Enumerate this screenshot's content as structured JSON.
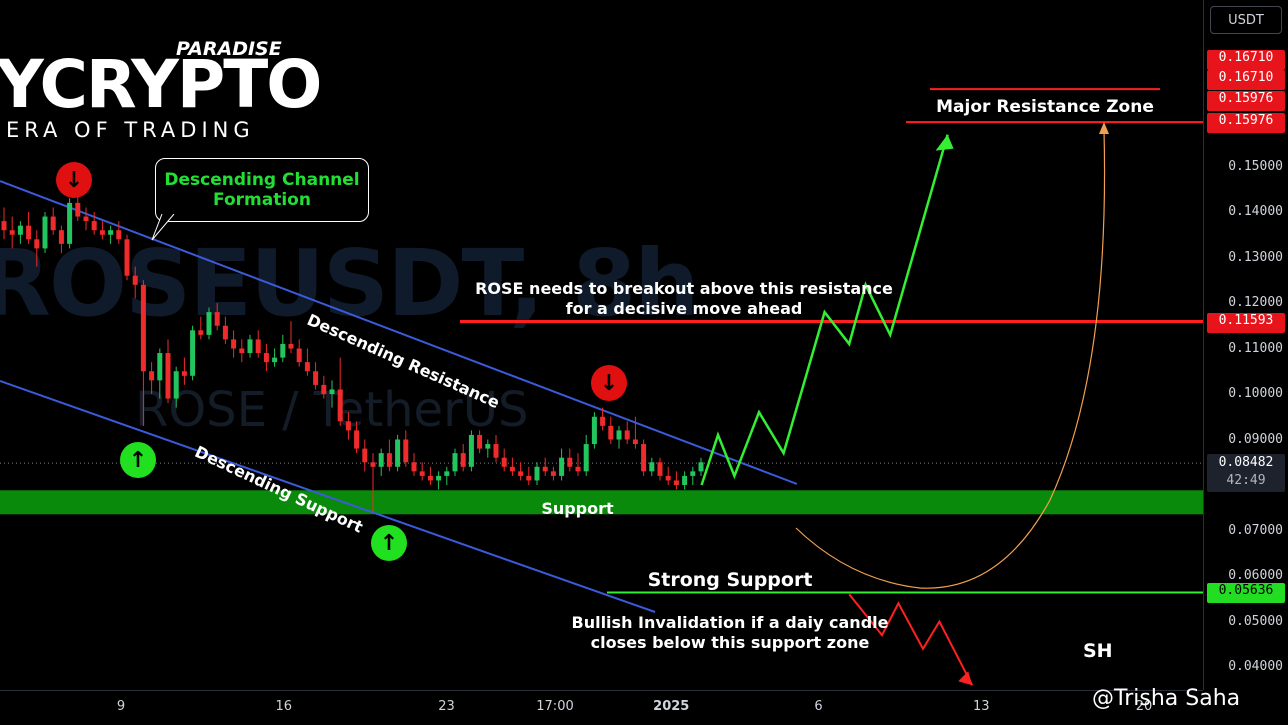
{
  "brand": {
    "paradise": "PARADISE",
    "crypto": "YCRYPTO",
    "tagline": "ERA OF TRADING"
  },
  "watermark": {
    "symbol": "ROSEUSDT, 8h",
    "pair": "ROSE / TetherUS"
  },
  "price_axis": {
    "unit_button": "USDT",
    "current_price": "0.08482",
    "countdown": "42:49"
  },
  "annotations": {
    "callout": "Descending Channel\nFormation",
    "descending_resistance": "Descending Resistance",
    "descending_support": "Descending Support",
    "breakout_note_line1": "ROSE needs to breakout above this resistance",
    "breakout_note_line2": "for a decisive move ahead",
    "support": "Support",
    "strong_support": "Strong Support",
    "invalidation_line1": "Bullish Invalidation if a daiy candle",
    "invalidation_line2": "closes below this support zone",
    "major_resistance": "Major Resistance Zone",
    "sh": "SH"
  },
  "credit": "@Trisha Saha",
  "colors": {
    "bull": "#22c55e",
    "bear": "#ef2b2b",
    "channel": "#3b5bdb",
    "support_zone": "#0a8a0a",
    "resistance": "#ff1f1f",
    "projection_up": "#33ee33",
    "projection_down": "#ff2020",
    "curve": "#f0a050"
  },
  "chart_data": {
    "type": "candlestick",
    "title": "ROSEUSDT, 8h",
    "y_axis_ticks": [
      "0.15000",
      "0.14000",
      "0.13000",
      "0.12000",
      "0.11000",
      "0.10000",
      "0.09000",
      "0.07000",
      "0.06000",
      "0.05000",
      "0.04000"
    ],
    "price_labels": [
      {
        "value": "0.16710",
        "kind": "resistance"
      },
      {
        "value": "0.16710",
        "kind": "resistance"
      },
      {
        "value": "0.15976",
        "kind": "resistance"
      },
      {
        "value": "0.15976",
        "kind": "resistance"
      },
      {
        "value": "0.11593",
        "kind": "resistance"
      },
      {
        "value": "0.05636",
        "kind": "support"
      }
    ],
    "x_axis_ticks": [
      {
        "label": "9",
        "x": 0
      },
      {
        "label": "16",
        "x": 21
      },
      {
        "label": "23",
        "x": 42
      },
      {
        "label": "17:00",
        "x": 56
      },
      {
        "label": "2025",
        "x": 71,
        "bold": true
      },
      {
        "label": "6",
        "x": 90
      },
      {
        "label": "13",
        "x": 111
      },
      {
        "label": "20",
        "x": 132
      }
    ],
    "candles": [
      [
        0.138,
        0.141,
        0.134,
        0.136
      ],
      [
        0.136,
        0.139,
        0.132,
        0.135
      ],
      [
        0.135,
        0.138,
        0.133,
        0.137
      ],
      [
        0.137,
        0.14,
        0.133,
        0.134
      ],
      [
        0.134,
        0.136,
        0.128,
        0.132
      ],
      [
        0.132,
        0.14,
        0.131,
        0.139
      ],
      [
        0.139,
        0.141,
        0.135,
        0.136
      ],
      [
        0.136,
        0.137,
        0.131,
        0.133
      ],
      [
        0.133,
        0.143,
        0.132,
        0.142
      ],
      [
        0.142,
        0.144,
        0.138,
        0.139
      ],
      [
        0.139,
        0.141,
        0.136,
        0.138
      ],
      [
        0.138,
        0.14,
        0.135,
        0.136
      ],
      [
        0.136,
        0.138,
        0.134,
        0.135
      ],
      [
        0.135,
        0.137,
        0.133,
        0.136
      ],
      [
        0.136,
        0.138,
        0.133,
        0.134
      ],
      [
        0.134,
        0.135,
        0.125,
        0.126
      ],
      [
        0.126,
        0.128,
        0.121,
        0.124
      ],
      [
        0.124,
        0.125,
        0.093,
        0.105
      ],
      [
        0.105,
        0.107,
        0.1,
        0.103
      ],
      [
        0.103,
        0.11,
        0.099,
        0.109
      ],
      [
        0.109,
        0.112,
        0.098,
        0.099
      ],
      [
        0.099,
        0.106,
        0.097,
        0.105
      ],
      [
        0.105,
        0.108,
        0.102,
        0.104
      ],
      [
        0.104,
        0.115,
        0.103,
        0.114
      ],
      [
        0.114,
        0.117,
        0.112,
        0.113
      ],
      [
        0.113,
        0.119,
        0.112,
        0.118
      ],
      [
        0.118,
        0.12,
        0.114,
        0.115
      ],
      [
        0.115,
        0.117,
        0.111,
        0.112
      ],
      [
        0.112,
        0.114,
        0.108,
        0.11
      ],
      [
        0.11,
        0.112,
        0.107,
        0.109
      ],
      [
        0.109,
        0.113,
        0.108,
        0.112
      ],
      [
        0.112,
        0.114,
        0.108,
        0.109
      ],
      [
        0.109,
        0.111,
        0.105,
        0.107
      ],
      [
        0.107,
        0.11,
        0.106,
        0.108
      ],
      [
        0.108,
        0.113,
        0.107,
        0.111
      ],
      [
        0.111,
        0.116,
        0.109,
        0.11
      ],
      [
        0.11,
        0.112,
        0.106,
        0.107
      ],
      [
        0.107,
        0.11,
        0.104,
        0.105
      ],
      [
        0.105,
        0.107,
        0.101,
        0.102
      ],
      [
        0.102,
        0.104,
        0.099,
        0.1
      ],
      [
        0.1,
        0.103,
        0.097,
        0.101
      ],
      [
        0.101,
        0.108,
        0.093,
        0.094
      ],
      [
        0.094,
        0.096,
        0.09,
        0.092
      ],
      [
        0.092,
        0.094,
        0.087,
        0.088
      ],
      [
        0.088,
        0.09,
        0.083,
        0.085
      ],
      [
        0.085,
        0.087,
        0.074,
        0.084
      ],
      [
        0.084,
        0.088,
        0.082,
        0.087
      ],
      [
        0.087,
        0.09,
        0.083,
        0.084
      ],
      [
        0.084,
        0.091,
        0.083,
        0.09
      ],
      [
        0.09,
        0.092,
        0.084,
        0.085
      ],
      [
        0.085,
        0.087,
        0.082,
        0.083
      ],
      [
        0.083,
        0.085,
        0.081,
        0.082
      ],
      [
        0.082,
        0.084,
        0.08,
        0.081
      ],
      [
        0.081,
        0.083,
        0.079,
        0.082
      ],
      [
        0.082,
        0.084,
        0.08,
        0.083
      ],
      [
        0.083,
        0.088,
        0.082,
        0.087
      ],
      [
        0.087,
        0.089,
        0.083,
        0.084
      ],
      [
        0.084,
        0.092,
        0.083,
        0.091
      ],
      [
        0.091,
        0.092,
        0.087,
        0.088
      ],
      [
        0.088,
        0.09,
        0.086,
        0.089
      ],
      [
        0.089,
        0.091,
        0.085,
        0.086
      ],
      [
        0.086,
        0.088,
        0.083,
        0.084
      ],
      [
        0.084,
        0.086,
        0.082,
        0.083
      ],
      [
        0.083,
        0.085,
        0.081,
        0.082
      ],
      [
        0.082,
        0.084,
        0.08,
        0.081
      ],
      [
        0.081,
        0.085,
        0.08,
        0.084
      ],
      [
        0.084,
        0.086,
        0.082,
        0.083
      ],
      [
        0.083,
        0.084,
        0.081,
        0.082
      ],
      [
        0.082,
        0.088,
        0.081,
        0.086
      ],
      [
        0.086,
        0.088,
        0.083,
        0.084
      ],
      [
        0.084,
        0.087,
        0.082,
        0.083
      ],
      [
        0.083,
        0.091,
        0.082,
        0.089
      ],
      [
        0.089,
        0.096,
        0.088,
        0.095
      ],
      [
        0.095,
        0.097,
        0.092,
        0.093
      ],
      [
        0.093,
        0.095,
        0.089,
        0.09
      ],
      [
        0.09,
        0.093,
        0.088,
        0.092
      ],
      [
        0.092,
        0.094,
        0.089,
        0.09
      ],
      [
        0.09,
        0.095,
        0.088,
        0.089
      ],
      [
        0.089,
        0.09,
        0.082,
        0.083
      ],
      [
        0.083,
        0.086,
        0.082,
        0.085
      ],
      [
        0.085,
        0.086,
        0.081,
        0.082
      ],
      [
        0.082,
        0.084,
        0.08,
        0.081
      ],
      [
        0.081,
        0.083,
        0.079,
        0.08
      ],
      [
        0.08,
        0.083,
        0.079,
        0.082
      ],
      [
        0.082,
        0.084,
        0.08,
        0.083
      ],
      [
        0.083,
        0.086,
        0.082,
        0.085
      ]
    ],
    "channel": {
      "resistance": [
        [
          0.143,
          0
        ],
        [
          0.082,
          90
        ]
      ],
      "support": [
        [
          0.108,
          0
        ],
        [
          0.051,
          90
        ]
      ]
    },
    "levels": [
      {
        "name": "Major Resistance Zone",
        "value": 0.15976
      },
      {
        "name": "Resistance",
        "value": 0.11593
      },
      {
        "name": "Support",
        "value": 0.0762
      },
      {
        "name": "Strong Support",
        "value": 0.05636
      }
    ],
    "projection_bullish": [
      [
        0.08,
        88
      ],
      [
        0.091,
        90
      ],
      [
        0.082,
        92
      ],
      [
        0.096,
        95
      ],
      [
        0.087,
        98
      ],
      [
        0.118,
        103
      ],
      [
        0.111,
        106
      ],
      [
        0.124,
        108
      ],
      [
        0.113,
        111
      ],
      [
        0.157,
        118
      ]
    ],
    "projection_bearish": [
      [
        0.056,
        106
      ],
      [
        0.047,
        110
      ],
      [
        0.054,
        112
      ],
      [
        0.044,
        115
      ],
      [
        0.05,
        117
      ],
      [
        0.036,
        121
      ]
    ]
  }
}
